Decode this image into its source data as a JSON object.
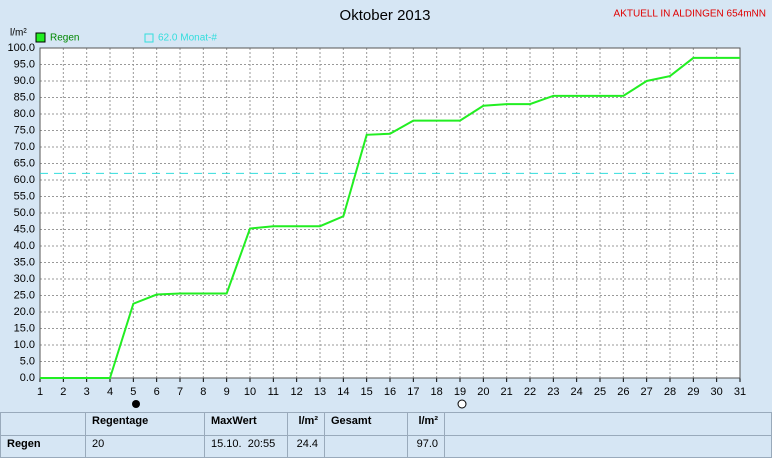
{
  "chart_data": {
    "type": "line",
    "title": "Oktober 2013",
    "annotation": "AKTUELL IN ALDINGEN 654mNN",
    "y_label": "l/m²",
    "x": [
      1,
      2,
      3,
      4,
      5,
      6,
      7,
      8,
      9,
      10,
      11,
      12,
      13,
      14,
      15,
      16,
      17,
      18,
      19,
      20,
      21,
      22,
      23,
      24,
      25,
      26,
      27,
      28,
      29,
      30,
      31
    ],
    "series": [
      {
        "name": "Regen",
        "color": "#22ee22",
        "values": [
          0,
          0,
          0,
          0,
          22.5,
          25.3,
          25.6,
          25.6,
          25.6,
          45.3,
          46,
          46,
          46,
          49,
          73.7,
          74,
          78,
          78,
          78,
          82.5,
          83,
          83,
          85.5,
          85.5,
          85.5,
          85.5,
          90,
          91.5,
          97,
          97,
          97
        ]
      }
    ],
    "reference_line": {
      "name": "62.0 Monat-#",
      "value": 62.0,
      "color": "#33dddd"
    },
    "xlim": [
      1,
      31
    ],
    "xticks": [
      1,
      2,
      3,
      4,
      5,
      6,
      7,
      8,
      9,
      10,
      11,
      12,
      13,
      14,
      15,
      16,
      17,
      18,
      19,
      20,
      21,
      22,
      23,
      24,
      25,
      26,
      27,
      28,
      29,
      30,
      31
    ],
    "ylim": [
      0,
      100
    ],
    "yticks": [
      {
        "value": 0,
        "label": "0.0"
      },
      {
        "value": 5,
        "label": "5.0"
      },
      {
        "value": 10,
        "label": "10.0"
      },
      {
        "value": 15,
        "label": "15.0"
      },
      {
        "value": 20,
        "label": "20.0"
      },
      {
        "value": 25,
        "label": "25.0"
      },
      {
        "value": 30,
        "label": "30.0"
      },
      {
        "value": 35,
        "label": "35.0"
      },
      {
        "value": 40,
        "label": "40.0"
      },
      {
        "value": 45,
        "label": "45.0"
      },
      {
        "value": 50,
        "label": "50.0"
      },
      {
        "value": 55,
        "label": "55.0"
      },
      {
        "value": 60,
        "label": "60.0"
      },
      {
        "value": 65,
        "label": "65.0"
      },
      {
        "value": 70,
        "label": "70.0"
      },
      {
        "value": 75,
        "label": "75.0"
      },
      {
        "value": 80,
        "label": "80.0"
      },
      {
        "value": 85,
        "label": "85.0"
      },
      {
        "value": 90,
        "label": "90.0"
      },
      {
        "value": 95,
        "label": "95.0"
      },
      {
        "value": 100,
        "label": "100.0"
      }
    ],
    "grid": true
  },
  "table": {
    "header": [
      "Regentage",
      "MaxWert",
      "l/m²",
      "Gesamt",
      "l/m²"
    ],
    "row": {
      "label": "Regen",
      "days": "20",
      "max_time": "15.10.  20:55",
      "max_value": "24.4",
      "total": "97.0"
    }
  }
}
